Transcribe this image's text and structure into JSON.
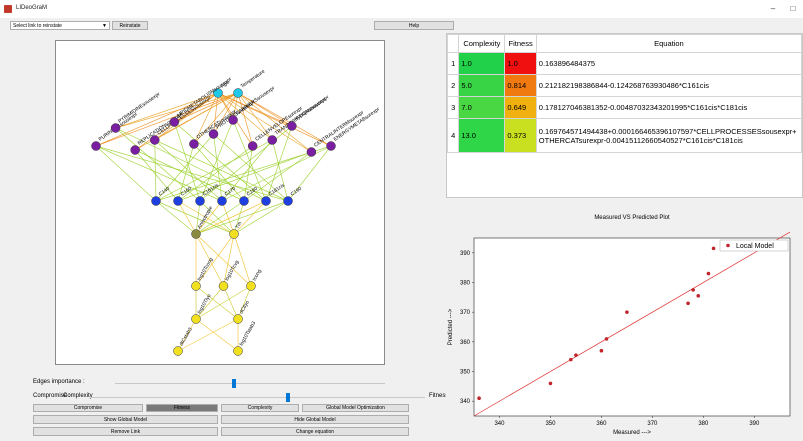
{
  "window": {
    "title": "LIDeoGraM",
    "minimize_glyph": "–",
    "maximize_glyph": "□"
  },
  "toolbar": {
    "link_select_value": "Select link to reinstate",
    "reinstate_label": "Reinstate",
    "help_label": "Help"
  },
  "graph": {
    "nodes": [
      {
        "label": "Age",
        "level": 0,
        "color": "#1ec8e8"
      },
      {
        "label": "Temperature",
        "level": 0,
        "color": "#1ec8e8"
      },
      {
        "label": "PURINESSsousexpr",
        "level": 1,
        "color": "#7b1fa2"
      },
      {
        "label": "PYRIMIDINEsousexpr",
        "level": 1,
        "color": "#7b1fa2"
      },
      {
        "label": "REPLICATIONsousexpr",
        "level": 1,
        "color": "#7b1fa2"
      },
      {
        "label": "CELLPROCESSESsousexpr",
        "level": 1,
        "color": "#7b1fa2"
      },
      {
        "label": "LIPIDMETABOLISMsousexpr",
        "level": 1,
        "color": "#7b1fa2"
      },
      {
        "label": "OTHERCATsousexpr",
        "level": 1,
        "color": "#7b1fa2"
      },
      {
        "label": "PROTEINSsousexpr",
        "level": 1,
        "color": "#7b1fa2"
      },
      {
        "label": "CARRIERSsousexpr",
        "level": 1,
        "color": "#7b1fa2"
      },
      {
        "label": "CELLENVELOPEsurexpr",
        "level": 1,
        "color": "#7b1fa2"
      },
      {
        "label": "TRANSCRIPTIONsousexpr",
        "level": 1,
        "color": "#7b1fa2"
      },
      {
        "label": "Hypoprotsousexpr",
        "level": 1,
        "color": "#7b1fa2"
      },
      {
        "label": "CENTRALINTERMsurexpr",
        "level": 1,
        "color": "#7b1fa2"
      },
      {
        "label": "ENERGYMETABsurexpr",
        "level": 1,
        "color": "#7b1fa2"
      },
      {
        "label": "C140",
        "level": 2,
        "color": "#1f3fe0"
      },
      {
        "label": "C160",
        "level": 2,
        "color": "#1f3fe0"
      },
      {
        "label": "C161cis",
        "level": 2,
        "color": "#1f3fe0"
      },
      {
        "label": "C170",
        "level": 2,
        "color": "#1f3fe0"
      },
      {
        "label": "C180",
        "level": 2,
        "color": "#1f3fe0"
      },
      {
        "label": "C181cis",
        "level": 2,
        "color": "#1f3fe0"
      },
      {
        "label": "C190",
        "level": 2,
        "color": "#1f3fe0"
      },
      {
        "label": "Anisotropie",
        "level": 3,
        "color": "#8a8a40"
      },
      {
        "label": "Tm",
        "level": 3,
        "color": "#f0e020"
      },
      {
        "label": "log10Tcong",
        "level": 4,
        "color": "#f0e020"
      },
      {
        "label": "log10Tcvg",
        "level": 4,
        "color": "#f0e020"
      },
      {
        "label": "tcong",
        "level": 4,
        "color": "#f0e020"
      },
      {
        "label": "log10Tlyo",
        "level": 5,
        "color": "#f0e020"
      },
      {
        "label": "dCtlyo",
        "level": 5,
        "color": "#f0e020"
      },
      {
        "label": "dtCstab3",
        "level": 6,
        "color": "#f0e020"
      },
      {
        "label": "log10Tstab3",
        "level": 6,
        "color": "#f0e020"
      }
    ]
  },
  "controls": {
    "edges_importance_label": "Edges importance :",
    "edges_importance_value": 0.44,
    "compromise_label": "Compromise :",
    "compromise_left": "Complexity",
    "compromise_right": "Fitness",
    "compromise_value": 0.59,
    "row1": [
      "Compromise",
      "Fitness",
      "Complexity",
      "Global Model Optimization"
    ],
    "row1_active": 1,
    "row2": [
      "Show Global Model",
      "Hide Global Model"
    ],
    "row3": [
      "Remove Link",
      "Change equation"
    ]
  },
  "equations": {
    "headers": [
      "Complexity",
      "Fitness",
      "Equation"
    ],
    "rows": [
      {
        "n": "1",
        "complexity": "1.0",
        "fitness": "1.0",
        "eq1": "0.163896484375",
        "eq2": "",
        "cx_color": "#22d14a",
        "fit_color": "#f01010"
      },
      {
        "n": "2",
        "complexity": "5.0",
        "fitness": "0.814",
        "eq1": "0.212182198386844-0.124268763930486*C161cis",
        "eq2": "",
        "cx_color": "#39d445",
        "fit_color": "#f07a10"
      },
      {
        "n": "3",
        "complexity": "7.0",
        "fitness": "0.649",
        "eq1": "0.178127046381352-0.00487032343201995*C161cis*C181cis",
        "eq2": "",
        "cx_color": "#49d844",
        "fit_color": "#f0b010"
      },
      {
        "n": "4",
        "complexity": "13.0",
        "fitness": "0.373",
        "eq1": "0.169764571494438+0.000166465396107597*CELLPROCESSESsousexpr+",
        "eq2": "OTHERCATsurexpr-0.00415112660540527*C161cis*C181cis",
        "cx_color": "#2ed648",
        "fit_color": "#c8e020"
      }
    ]
  },
  "chart_data": {
    "type": "scatter",
    "title": "Measured  VS  Predicted  Plot",
    "xlabel": "Measured --->",
    "ylabel": "Predicted --->",
    "xlim": [
      335,
      397
    ],
    "ylim": [
      335,
      395
    ],
    "xticks": [
      340,
      350,
      360,
      370,
      380,
      390
    ],
    "yticks": [
      340,
      350,
      360,
      370,
      380,
      390
    ],
    "legend_position": "top-right",
    "series": [
      {
        "name": "Local Model",
        "color": "#c0262c",
        "points": [
          [
            336,
            341
          ],
          [
            350,
            346
          ],
          [
            354,
            354
          ],
          [
            355,
            355.5
          ],
          [
            360,
            357
          ],
          [
            361,
            361
          ],
          [
            365,
            370
          ],
          [
            377,
            373
          ],
          [
            378,
            377.5
          ],
          [
            379,
            375.5
          ],
          [
            381,
            383
          ],
          [
            382,
            391.5
          ]
        ]
      }
    ],
    "reference_line": {
      "from": [
        335,
        335
      ],
      "to": [
        397,
        397
      ],
      "color": "#e03030"
    }
  }
}
